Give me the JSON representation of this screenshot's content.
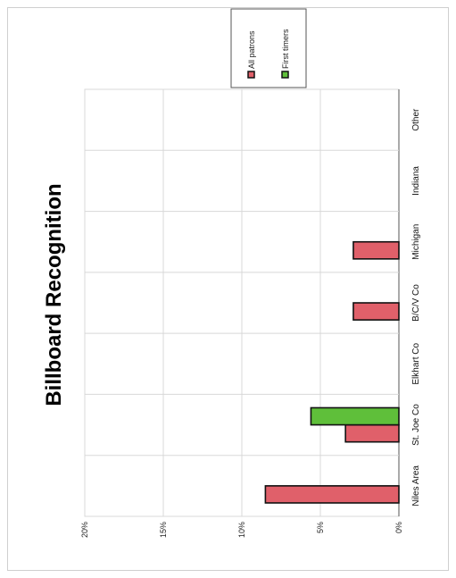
{
  "chart_data": {
    "type": "bar",
    "orientation": "horizontal",
    "title": "Billboard Recognition",
    "categories": [
      "Niles Area",
      "St. Joe Co",
      "Elkhart Co",
      "B/C/V Co",
      "Michigan",
      "Indiana",
      "Other"
    ],
    "series": [
      {
        "name": "All patrons",
        "values": [
          8.5,
          3.4,
          0,
          2.9,
          2.9,
          0,
          0
        ],
        "color": "#e0606a"
      },
      {
        "name": "First timers",
        "values": [
          0,
          5.6,
          0,
          0,
          0,
          0,
          0
        ],
        "color": "#5fbf3a"
      }
    ],
    "value_axis": {
      "min": 0,
      "max": 20,
      "step": 5,
      "tick_labels": [
        "0%",
        "5%",
        "10%",
        "15%",
        "20%"
      ]
    },
    "grid": true,
    "legend_position": "top-right"
  }
}
